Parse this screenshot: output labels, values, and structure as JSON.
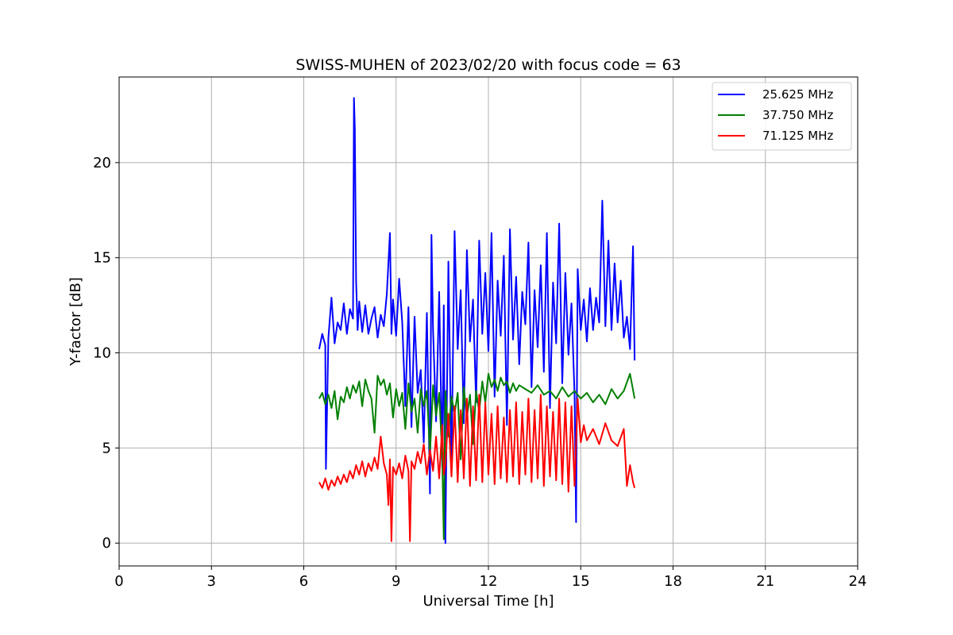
{
  "chart_data": {
    "type": "line",
    "title": "SWISS-MUHEN of 2023/02/20 with focus code = 63",
    "xlabel": "Universal Time [h]",
    "ylabel": "Y-factor [dB]",
    "xlim": [
      0,
      24
    ],
    "ylim": [
      -1.2,
      24.5
    ],
    "xticks": [
      0,
      3,
      6,
      9,
      12,
      15,
      18,
      21,
      24
    ],
    "yticks": [
      0,
      5,
      10,
      15,
      20
    ],
    "grid": true,
    "legend_position": "top-right",
    "series": [
      {
        "name": "25.625 MHz",
        "color": "#0000ff",
        "x": [
          6.5,
          6.6,
          6.7,
          6.72,
          6.8,
          6.9,
          7.0,
          7.1,
          7.2,
          7.3,
          7.4,
          7.5,
          7.6,
          7.63,
          7.66,
          7.7,
          7.75,
          7.8,
          7.9,
          8.0,
          8.1,
          8.2,
          8.3,
          8.4,
          8.5,
          8.6,
          8.7,
          8.8,
          8.85,
          8.9,
          9.0,
          9.1,
          9.2,
          9.3,
          9.4,
          9.5,
          9.6,
          9.7,
          9.8,
          9.9,
          10.0,
          10.1,
          10.15,
          10.2,
          10.3,
          10.4,
          10.5,
          10.55,
          10.6,
          10.7,
          10.8,
          10.9,
          11.0,
          11.1,
          11.2,
          11.3,
          11.4,
          11.5,
          11.6,
          11.7,
          11.8,
          11.9,
          12.0,
          12.1,
          12.2,
          12.3,
          12.4,
          12.5,
          12.6,
          12.7,
          12.8,
          12.9,
          13.0,
          13.1,
          13.2,
          13.3,
          13.4,
          13.5,
          13.6,
          13.7,
          13.8,
          13.9,
          14.0,
          14.1,
          14.2,
          14.3,
          14.4,
          14.5,
          14.6,
          14.7,
          14.8,
          14.85,
          14.9,
          15.0,
          15.1,
          15.2,
          15.3,
          15.4,
          15.5,
          15.6,
          15.7,
          15.8,
          15.9,
          16.0,
          16.1,
          16.2,
          16.3,
          16.4,
          16.5,
          16.6,
          16.7,
          16.75
        ],
        "y": [
          10.2,
          11.0,
          10.4,
          3.9,
          10.8,
          12.9,
          10.5,
          11.6,
          11.2,
          12.6,
          11.0,
          12.3,
          11.8,
          23.4,
          21.8,
          13.8,
          11.2,
          12.7,
          11.1,
          12.5,
          11.0,
          11.8,
          12.4,
          10.8,
          12.0,
          11.4,
          13.1,
          16.3,
          11.0,
          12.8,
          10.9,
          13.9,
          11.6,
          7.2,
          12.4,
          6.1,
          11.9,
          7.9,
          9.1,
          5.3,
          12.1,
          2.6,
          16.2,
          11.2,
          6.4,
          13.2,
          4.0,
          12.5,
          0.0,
          14.8,
          4.1,
          16.4,
          10.2,
          13.3,
          6.3,
          15.4,
          10.6,
          12.8,
          7.4,
          15.9,
          11.0,
          14.2,
          10.1,
          16.3,
          7.7,
          13.8,
          10.9,
          15.1,
          6.2,
          16.5,
          10.7,
          14.0,
          9.4,
          13.2,
          11.5,
          15.8,
          8.2,
          13.3,
          10.3,
          14.6,
          9.0,
          16.3,
          7.1,
          13.7,
          10.5,
          16.8,
          8.4,
          14.2,
          9.9,
          12.6,
          7.8,
          1.1,
          14.4,
          11.2,
          12.8,
          10.6,
          13.4,
          11.2,
          12.9,
          11.6,
          18.0,
          11.4,
          15.9,
          11.2,
          14.7,
          11.6,
          13.8,
          10.8,
          11.9,
          10.2,
          15.6,
          9.6
        ]
      },
      {
        "name": "37.750 MHz",
        "color": "#008000",
        "x": [
          6.5,
          6.6,
          6.7,
          6.8,
          6.9,
          7.0,
          7.1,
          7.2,
          7.3,
          7.4,
          7.5,
          7.6,
          7.7,
          7.8,
          7.9,
          8.0,
          8.1,
          8.2,
          8.3,
          8.4,
          8.5,
          8.6,
          8.7,
          8.8,
          8.9,
          9.0,
          9.1,
          9.2,
          9.3,
          9.4,
          9.5,
          9.6,
          9.7,
          9.8,
          9.9,
          10.0,
          10.1,
          10.2,
          10.3,
          10.4,
          10.5,
          10.55,
          10.6,
          10.7,
          10.8,
          10.9,
          11.0,
          11.1,
          11.2,
          11.3,
          11.4,
          11.5,
          11.6,
          11.7,
          11.8,
          11.9,
          12.0,
          12.1,
          12.2,
          12.3,
          12.4,
          12.5,
          12.6,
          12.7,
          12.8,
          12.9,
          13.0,
          13.2,
          13.4,
          13.6,
          13.8,
          14.0,
          14.2,
          14.4,
          14.6,
          14.8,
          15.0,
          15.2,
          15.4,
          15.6,
          15.8,
          16.0,
          16.2,
          16.4,
          16.6,
          16.75
        ],
        "y": [
          7.6,
          7.9,
          7.3,
          7.8,
          7.1,
          8.0,
          6.5,
          7.7,
          7.4,
          8.2,
          7.6,
          8.3,
          7.9,
          8.5,
          7.2,
          8.6,
          8.0,
          7.6,
          5.8,
          8.8,
          8.3,
          8.6,
          7.8,
          8.4,
          6.6,
          8.1,
          7.2,
          7.9,
          6.0,
          8.4,
          6.9,
          7.6,
          5.8,
          8.1,
          7.2,
          8.0,
          4.7,
          8.3,
          6.7,
          7.9,
          4.5,
          0.2,
          8.0,
          5.6,
          7.7,
          6.8,
          7.9,
          4.4,
          8.2,
          6.6,
          7.8,
          5.2,
          8.0,
          6.9,
          8.5,
          7.4,
          8.9,
          8.2,
          8.6,
          8.0,
          8.7,
          8.3,
          8.5,
          7.9,
          8.4,
          8.0,
          8.3,
          8.1,
          7.9,
          8.3,
          7.8,
          8.0,
          7.6,
          8.2,
          7.7,
          8.0,
          7.6,
          7.9,
          7.4,
          7.8,
          7.3,
          8.1,
          7.6,
          8.0,
          8.9,
          7.6
        ]
      },
      {
        "name": "71.125 MHz",
        "color": "#ff0000",
        "x": [
          6.5,
          6.6,
          6.7,
          6.8,
          6.9,
          7.0,
          7.1,
          7.2,
          7.3,
          7.4,
          7.5,
          7.6,
          7.7,
          7.8,
          7.9,
          8.0,
          8.1,
          8.2,
          8.3,
          8.4,
          8.5,
          8.6,
          8.7,
          8.75,
          8.8,
          8.85,
          8.9,
          9.0,
          9.1,
          9.2,
          9.3,
          9.4,
          9.45,
          9.5,
          9.6,
          9.7,
          9.8,
          9.9,
          10.0,
          10.1,
          10.2,
          10.3,
          10.4,
          10.5,
          10.55,
          10.6,
          10.7,
          10.8,
          10.9,
          11.0,
          11.1,
          11.2,
          11.3,
          11.4,
          11.5,
          11.6,
          11.7,
          11.8,
          11.9,
          12.0,
          12.1,
          12.2,
          12.3,
          12.4,
          12.5,
          12.6,
          12.7,
          12.8,
          12.9,
          13.0,
          13.1,
          13.2,
          13.3,
          13.4,
          13.5,
          13.6,
          13.7,
          13.8,
          13.9,
          14.0,
          14.1,
          14.2,
          14.3,
          14.4,
          14.5,
          14.6,
          14.7,
          14.8,
          14.9,
          15.0,
          15.1,
          15.2,
          15.4,
          15.6,
          15.8,
          16.0,
          16.2,
          16.4,
          16.5,
          16.6,
          16.7,
          16.75
        ],
        "y": [
          3.2,
          2.9,
          3.4,
          2.8,
          3.3,
          3.0,
          3.5,
          3.1,
          3.6,
          3.2,
          3.8,
          3.4,
          4.1,
          3.6,
          4.3,
          3.5,
          4.2,
          3.8,
          4.5,
          3.9,
          5.6,
          4.2,
          3.6,
          2.0,
          4.4,
          0.1,
          4.0,
          3.6,
          4.2,
          3.4,
          4.6,
          3.8,
          0.1,
          4.3,
          3.9,
          4.8,
          4.2,
          5.2,
          3.6,
          4.9,
          3.8,
          5.6,
          3.4,
          6.2,
          3.6,
          4.1,
          6.8,
          3.5,
          7.2,
          3.2,
          7.0,
          3.4,
          7.6,
          3.0,
          7.2,
          3.3,
          7.8,
          3.2,
          7.4,
          3.6,
          6.8,
          3.1,
          7.2,
          3.4,
          6.6,
          3.2,
          7.0,
          3.5,
          7.4,
          3.1,
          6.9,
          3.6,
          7.6,
          3.2,
          7.0,
          3.4,
          7.8,
          3.0,
          7.2,
          3.5,
          6.9,
          3.3,
          7.6,
          3.1,
          7.4,
          2.7,
          7.2,
          3.0,
          7.6,
          5.3,
          6.2,
          5.4,
          6.0,
          5.2,
          6.3,
          5.4,
          5.1,
          6.0,
          3.0,
          4.1,
          3.2,
          2.9
        ]
      }
    ]
  }
}
